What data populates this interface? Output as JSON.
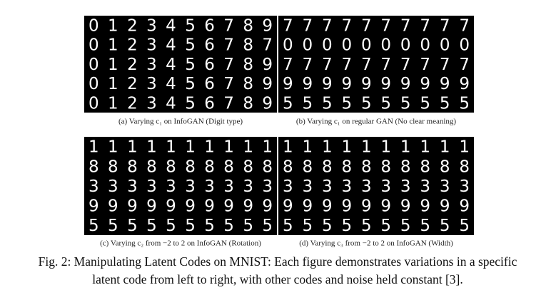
{
  "figure": {
    "panels": [
      {
        "rows": [
          "0123456789",
          "0123456787",
          "0123456789",
          "0123456789",
          "0123456789"
        ],
        "caption": "(a) Varying c₁ on InfoGAN (Digit type)"
      },
      {
        "rows": [
          "7777777777",
          "0000000000",
          "7777777777",
          "9999999999",
          "5555555555"
        ],
        "caption": "(b) Varying c₁ on regular GAN (No clear meaning)"
      },
      {
        "rows": [
          "1111111111",
          "8888888888",
          "3333333333",
          "9999999999",
          "5555555555"
        ],
        "caption": "(c) Varying c₂ from −2 to 2 on InfoGAN (Rotation)"
      },
      {
        "rows": [
          "1111111111",
          "8888888888",
          "3333333333",
          "9999999999",
          "5555555555"
        ],
        "caption": "(d) Varying c₃ from −2 to 2 on InfoGAN (Width)"
      }
    ],
    "caption_lines": [
      "Fig. 2: Manipulating Latent Codes on MNIST: Each figure demonstrates variations in a specific",
      "latent code from left to right, with other codes and noise held constant [3]."
    ]
  }
}
